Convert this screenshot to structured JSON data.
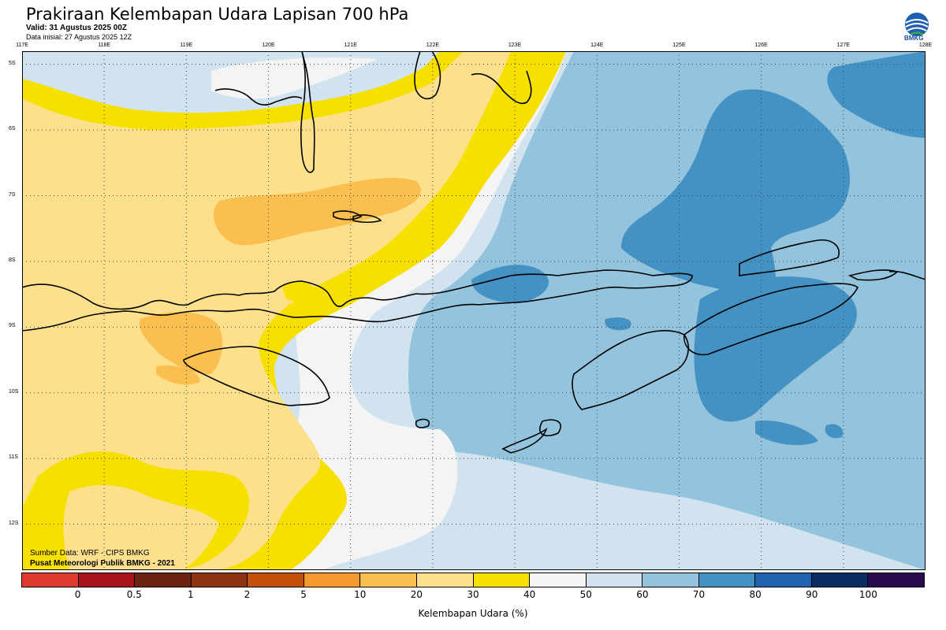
{
  "title": "Prakiraan Kelembapan Udara Lapisan 700 hPa",
  "valid": "Valid: 31 Agustus 2025 00Z",
  "init": "Data inisial: 27 Agustus 2025 12Z",
  "logo_text": "BMKG",
  "lon_labels": [
    "117E",
    "118E",
    "119E",
    "120E",
    "121E",
    "122E",
    "123E",
    "124E",
    "125E",
    "126E",
    "127E",
    "128E"
  ],
  "lat_labels": [
    "5S",
    "6S",
    "7S",
    "8S",
    "9S",
    "10S",
    "11S",
    "12S"
  ],
  "credit_source": "Sumber Data: WRF - CIPS BMKG",
  "credit_org": "Pusat Meteorologi Publik BMKG - 2021",
  "colorbar": {
    "title": "Kelembapan Udara (%)",
    "ticks": [
      "0",
      "0.5",
      "1",
      "2",
      "5",
      "10",
      "20",
      "30",
      "40",
      "50",
      "60",
      "70",
      "80",
      "90",
      "100"
    ],
    "colors": [
      "#e03a2f",
      "#a8141a",
      "#6b2410",
      "#8e3510",
      "#c2500a",
      "#f59a30",
      "#fbbf50",
      "#fde08c",
      "#f6e000",
      "#f4f4f4",
      "#d0e3ef",
      "#94c4dd",
      "#4392c3",
      "#1f62ad",
      "#0b2d66",
      "#2a0a4f"
    ]
  },
  "map": {
    "lon_range": [
      117,
      128
    ],
    "lat_range": [
      -4.8,
      -12.7
    ],
    "ocean_color": "#ffffff",
    "coastline_color": "#000000"
  }
}
